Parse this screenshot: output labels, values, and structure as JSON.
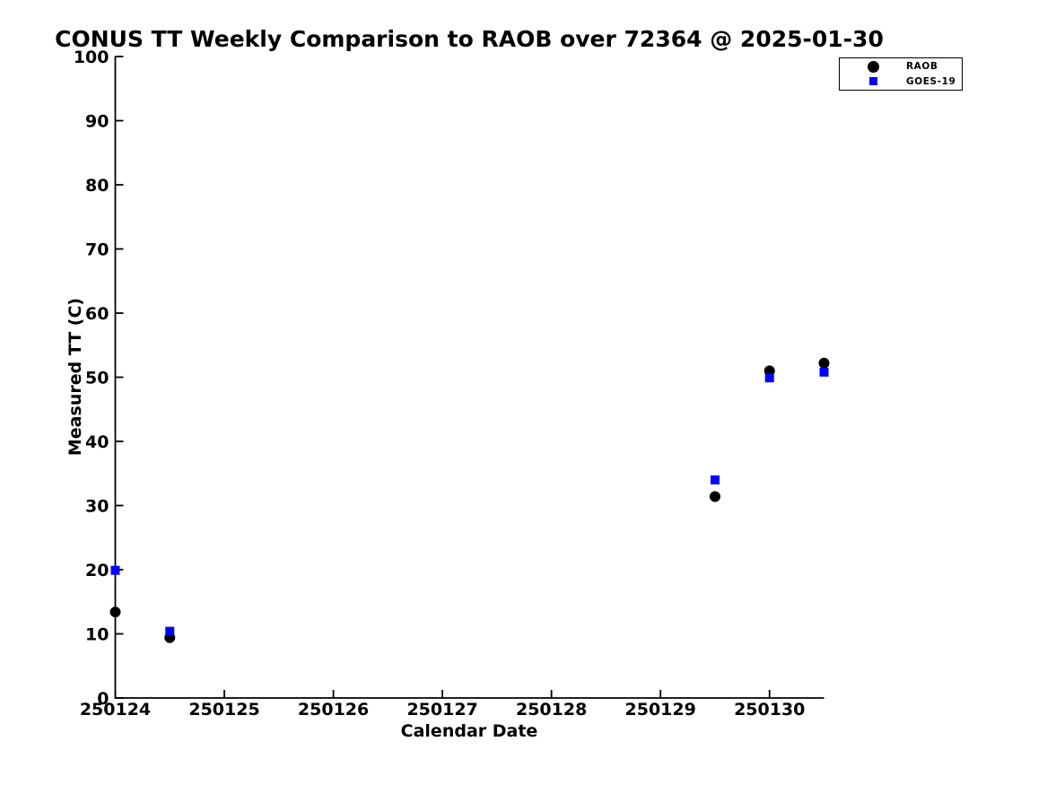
{
  "figure": {
    "background": "#ffffff",
    "axis_color": "#000000"
  },
  "chart_data": {
    "type": "scatter",
    "title": "CONUS TT Weekly Comparison to RAOB over 72364 @ 2025-01-30",
    "xlabel": "Calendar Date",
    "ylabel": "Measured TT (C)",
    "xlim": [
      250124,
      250130.5
    ],
    "ylim": [
      0,
      100
    ],
    "x_ticks": [
      250124,
      250125,
      250126,
      250127,
      250128,
      250129,
      250130
    ],
    "x_tick_labels": [
      "250124",
      "250125",
      "250126",
      "250127",
      "250128",
      "250129",
      "250130"
    ],
    "y_ticks": [
      0,
      10,
      20,
      30,
      40,
      50,
      60,
      70,
      80,
      90,
      100
    ],
    "y_tick_labels": [
      "0",
      "10",
      "20",
      "30",
      "40",
      "50",
      "60",
      "70",
      "80",
      "90",
      "100"
    ],
    "grid": false,
    "tick_direction": "in",
    "legend_position": "outside-top-right",
    "x": [
      250124,
      250124.5,
      250129.5,
      250130,
      250130.5
    ],
    "series": [
      {
        "name": "RAOB",
        "marker": "filled-circle",
        "color": "#000000",
        "values": [
          13.4,
          9.4,
          31.4,
          51.0,
          52.2
        ]
      },
      {
        "name": "GOES-19",
        "marker": "filled-square",
        "color": "#0000ff",
        "values": [
          19.9,
          10.4,
          34.0,
          49.9,
          50.8
        ]
      }
    ]
  }
}
